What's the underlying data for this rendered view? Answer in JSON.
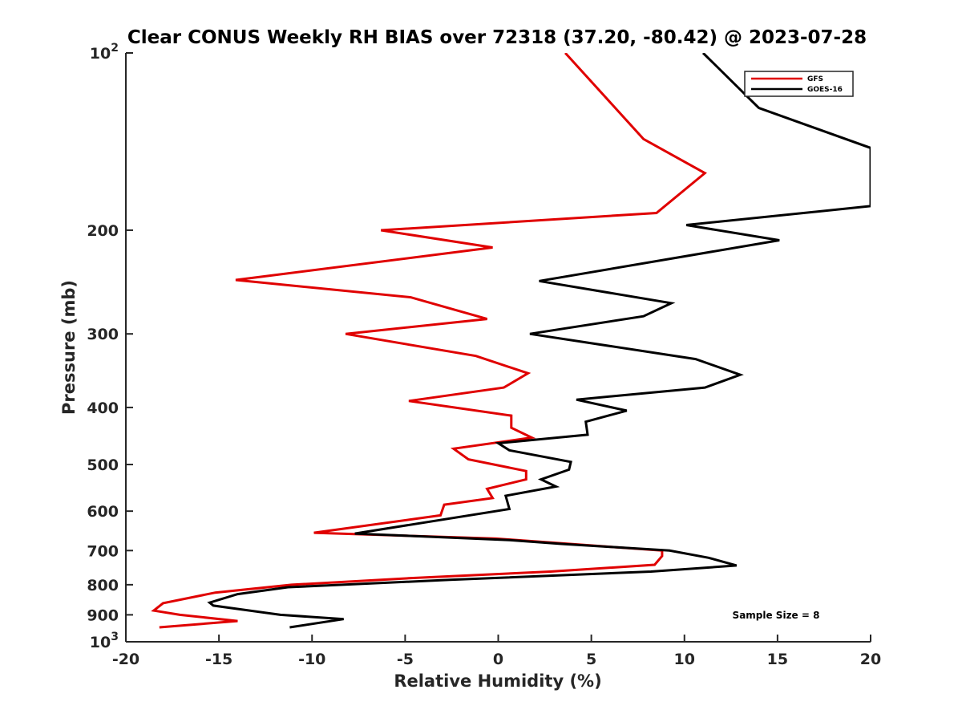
{
  "chart_data": {
    "type": "line",
    "title": "Clear CONUS Weekly RH BIAS over 72318 (37.20, -80.42) @ 2023-07-28",
    "xlabel": "Relative Humidity (%)",
    "ylabel": "Pressure (mb)",
    "xlim": [
      -20,
      20
    ],
    "ylim": [
      100,
      1000
    ],
    "y_scale": "log",
    "y_reversed": true,
    "grid": false,
    "legend_position": "top-right",
    "x_ticks": [
      -20,
      -15,
      -10,
      -5,
      0,
      5,
      10,
      15,
      20
    ],
    "y_ticks": [
      {
        "value": 100,
        "base": "10",
        "exp": "2"
      },
      {
        "value": 200,
        "label": "200"
      },
      {
        "value": 300,
        "label": "300"
      },
      {
        "value": 400,
        "label": "400"
      },
      {
        "value": 500,
        "label": "500"
      },
      {
        "value": 600,
        "label": "600"
      },
      {
        "value": 700,
        "label": "700"
      },
      {
        "value": 800,
        "label": "800"
      },
      {
        "value": 900,
        "label": "900"
      },
      {
        "value": 1000,
        "base": "10",
        "exp": "3"
      }
    ],
    "series": [
      {
        "name": "GFS",
        "color": "#e00000",
        "x": [
          3.6,
          7.8,
          11.1,
          8.5,
          -6.3,
          -0.3,
          -14.1,
          -4.7,
          -0.6,
          -8.2,
          -1.2,
          1.6,
          0.3,
          -4.8,
          0.7,
          0.7,
          1.8,
          -2.4,
          -1.6,
          1.5,
          1.5,
          -0.6,
          -0.3,
          -2.9,
          -3.1,
          -9.9,
          -0.1,
          8.8,
          8.8,
          8.4,
          2.8,
          -4.8,
          -11.1,
          -15.2,
          -18.0,
          -18.5,
          -17.1,
          -14.0,
          -18.2
        ],
        "y": [
          100,
          140,
          160,
          187,
          200,
          214,
          243,
          260,
          283,
          300,
          327,
          350,
          370,
          390,
          413,
          433,
          450,
          470,
          490,
          513,
          530,
          550,
          570,
          585,
          610,
          653,
          668,
          700,
          715,
          740,
          760,
          780,
          800,
          825,
          860,
          885,
          900,
          922,
          945
        ]
      },
      {
        "name": "GOES-16",
        "color": "#000000",
        "x": [
          11.0,
          14.0,
          20.0,
          20.0,
          10.1,
          15.1,
          2.2,
          9.3,
          7.8,
          1.7,
          10.6,
          13.0,
          11.1,
          4.2,
          6.9,
          4.7,
          4.8,
          0.0,
          0.6,
          3.9,
          3.8,
          2.3,
          3.1,
          0.4,
          0.6,
          -7.7,
          0.6,
          3.4,
          9.2,
          11.3,
          12.8,
          8.2,
          -2.6,
          -11.3,
          -14.0,
          -15.5,
          -15.3,
          -11.7,
          -8.3,
          -11.2
        ],
        "y": [
          100,
          124,
          145,
          182,
          196,
          208,
          244,
          266,
          280,
          300,
          331,
          352,
          370,
          388,
          405,
          423,
          445,
          460,
          473,
          495,
          510,
          530,
          545,
          565,
          595,
          655,
          672,
          682,
          700,
          720,
          742,
          760,
          785,
          808,
          830,
          858,
          868,
          900,
          915,
          945
        ]
      }
    ],
    "annotations": [
      "Sample Size = 8"
    ]
  }
}
